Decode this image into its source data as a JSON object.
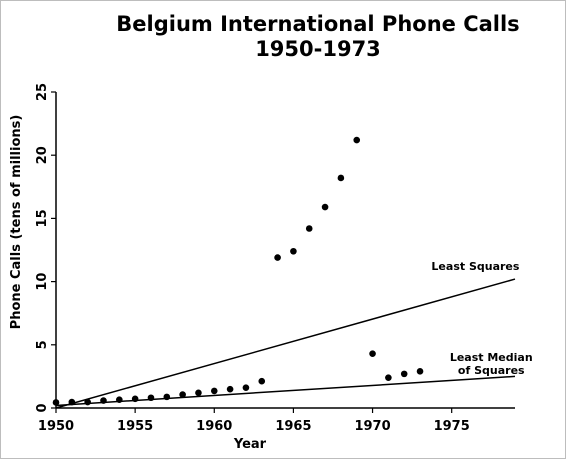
{
  "chart_data": {
    "type": "scatter",
    "title": [
      "Belgium International Phone Calls",
      "1950-1973"
    ],
    "xlabel": "Year",
    "ylabel": "Phone Calls (tens of millions)",
    "xlim": [
      1950,
      1979
    ],
    "ylim": [
      0,
      25
    ],
    "xticks": [
      1950,
      1955,
      1960,
      1965,
      1970,
      1975
    ],
    "yticks": [
      0,
      5,
      10,
      15,
      20,
      25
    ],
    "grid": false,
    "legend": "none",
    "points": [
      {
        "x": 1950,
        "y": 0.44
      },
      {
        "x": 1951,
        "y": 0.47
      },
      {
        "x": 1952,
        "y": 0.47
      },
      {
        "x": 1953,
        "y": 0.59
      },
      {
        "x": 1954,
        "y": 0.66
      },
      {
        "x": 1955,
        "y": 0.73
      },
      {
        "x": 1956,
        "y": 0.81
      },
      {
        "x": 1957,
        "y": 0.88
      },
      {
        "x": 1958,
        "y": 1.06
      },
      {
        "x": 1959,
        "y": 1.2
      },
      {
        "x": 1960,
        "y": 1.35
      },
      {
        "x": 1961,
        "y": 1.49
      },
      {
        "x": 1962,
        "y": 1.61
      },
      {
        "x": 1963,
        "y": 2.12
      },
      {
        "x": 1964,
        "y": 11.9
      },
      {
        "x": 1965,
        "y": 12.4
      },
      {
        "x": 1966,
        "y": 14.2
      },
      {
        "x": 1967,
        "y": 15.9
      },
      {
        "x": 1968,
        "y": 18.2
      },
      {
        "x": 1969,
        "y": 21.2
      },
      {
        "x": 1970,
        "y": 4.3
      },
      {
        "x": 1971,
        "y": 2.4
      },
      {
        "x": 1972,
        "y": 2.7
      },
      {
        "x": 1973,
        "y": 2.9
      }
    ],
    "lines": [
      {
        "name": "Least Squares",
        "x": [
          1950,
          1979
        ],
        "y": [
          0,
          10.2
        ]
      },
      {
        "name": "Least Median of Squares",
        "x": [
          1950,
          1979
        ],
        "y": [
          0.2,
          2.5
        ]
      }
    ],
    "annotations": [
      {
        "text": [
          "Least Squares"
        ],
        "at_x": 1976.5,
        "at_y": 10.9
      },
      {
        "text": [
          "Least Median",
          "of Squares"
        ],
        "at_x": 1977.5,
        "at_y": 3.7
      }
    ],
    "colors": {
      "points": "#000000",
      "lines": "#000000",
      "axes": "#000000",
      "frame": "#bdbdbd"
    }
  }
}
